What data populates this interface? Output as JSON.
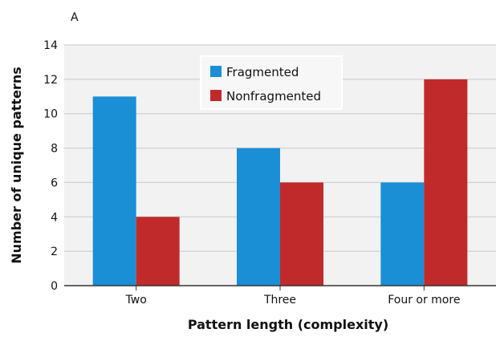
{
  "panel_label": "A",
  "colors": {
    "fragmented": "#1a8fd6",
    "nonfragmented": "#c12a2a",
    "grid": "#c8c8c8",
    "plot_bg": "#f2f2f2"
  },
  "chart_data": {
    "type": "bar",
    "title": "",
    "xlabel": "Pattern length (complexity)",
    "ylabel": "Number of unique patterns",
    "categories": [
      "Two",
      "Three",
      "Four or more"
    ],
    "series": [
      {
        "name": "Fragmented",
        "values": [
          11,
          8,
          6
        ]
      },
      {
        "name": "Nonfragmented",
        "values": [
          4,
          6,
          12
        ]
      }
    ],
    "ylim": [
      0,
      14
    ],
    "yticks": [
      0,
      2,
      4,
      6,
      8,
      10,
      12,
      14
    ],
    "grid": true,
    "legend_position": "top-center"
  }
}
